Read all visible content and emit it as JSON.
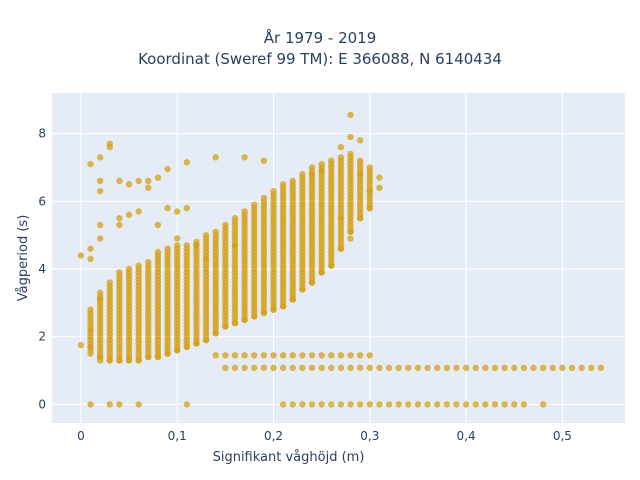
{
  "chart_data": {
    "type": "scatter",
    "title_lines": [
      "År 1979 - 2019",
      "Koordinat (Sweref 99 TM): E 366088, N 6140434"
    ],
    "xlabel": "Signifikant våghöjd (m)",
    "ylabel": "Vågperiod (s)",
    "xlim": [
      -0.03,
      0.565
    ],
    "ylim": [
      -0.55,
      9.2
    ],
    "x_ticks": [
      0,
      0.1,
      0.2,
      0.3,
      0.4,
      0.5
    ],
    "x_tick_labels": [
      "0",
      "0,1",
      "0,2",
      "0,3",
      "0,4",
      "0,5"
    ],
    "y_ticks": [
      0,
      2,
      4,
      6,
      8
    ],
    "y_tick_labels": [
      "0",
      "2",
      "4",
      "6",
      "8"
    ],
    "grid": true,
    "legend": false,
    "marker_color": "#d4a017",
    "background_color": "#e5ecf6",
    "series": [
      {
        "points": [
          [
            0.0,
            4.4
          ],
          [
            0.0,
            1.75
          ],
          [
            0.01,
            7.1
          ],
          [
            0.01,
            4.6
          ],
          [
            0.01,
            4.3
          ],
          [
            0.02,
            7.3
          ],
          [
            0.02,
            6.6
          ],
          [
            0.02,
            6.3
          ],
          [
            0.02,
            5.3
          ],
          [
            0.02,
            4.9
          ],
          [
            0.03,
            7.7
          ],
          [
            0.03,
            7.6
          ],
          [
            0.04,
            6.6
          ],
          [
            0.04,
            5.5
          ],
          [
            0.04,
            5.3
          ],
          [
            0.05,
            6.5
          ],
          [
            0.05,
            5.6
          ],
          [
            0.06,
            6.6
          ],
          [
            0.06,
            5.7
          ],
          [
            0.07,
            6.6
          ],
          [
            0.07,
            6.4
          ],
          [
            0.08,
            6.7
          ],
          [
            0.08,
            5.3
          ],
          [
            0.09,
            6.95
          ],
          [
            0.09,
            5.8
          ],
          [
            0.1,
            5.7
          ],
          [
            0.1,
            4.9
          ],
          [
            0.11,
            7.15
          ],
          [
            0.11,
            5.8
          ],
          [
            0.12,
            4.7
          ],
          [
            0.13,
            4.3
          ],
          [
            0.14,
            7.3
          ],
          [
            0.16,
            4.7
          ],
          [
            0.17,
            7.3
          ],
          [
            0.19,
            7.2
          ],
          [
            0.27,
            7.6
          ],
          [
            0.28,
            7.9
          ],
          [
            0.28,
            8.55
          ],
          [
            0.29,
            7.8
          ],
          [
            0.29,
            6.8
          ],
          [
            0.3,
            7.0
          ],
          [
            0.3,
            6.3
          ],
          [
            0.31,
            6.7
          ],
          [
            0.31,
            6.4
          ],
          [
            0.25,
            6.9
          ],
          [
            0.24,
            6.8
          ],
          [
            0.27,
            5.5
          ],
          [
            0.28,
            4.9
          ],
          [
            0.01,
            0
          ],
          [
            0.03,
            0
          ],
          [
            0.04,
            0
          ],
          [
            0.06,
            0
          ],
          [
            0.11,
            0
          ],
          [
            0.48,
            0
          ],
          [
            0.01,
            1.7
          ],
          [
            0.01,
            2.2
          ],
          [
            0.02,
            1.4
          ],
          [
            0.02,
            3.1
          ],
          [
            0.03,
            1.3
          ],
          [
            0.03,
            3.6
          ],
          [
            0.04,
            1.3
          ],
          [
            0.04,
            3.9
          ],
          [
            0.05,
            1.3
          ],
          [
            0.05,
            4.0
          ],
          [
            0.06,
            1.3
          ],
          [
            0.06,
            4.1
          ],
          [
            0.07,
            1.4
          ],
          [
            0.07,
            4.2
          ],
          [
            0.08,
            1.4
          ],
          [
            0.08,
            4.5
          ],
          [
            0.09,
            1.5
          ],
          [
            0.09,
            4.6
          ],
          [
            0.1,
            1.6
          ],
          [
            0.1,
            4.7
          ],
          [
            0.11,
            1.7
          ],
          [
            0.11,
            4.7
          ],
          [
            0.12,
            1.8
          ],
          [
            0.12,
            4.8
          ],
          [
            0.13,
            1.9
          ],
          [
            0.13,
            5.0
          ],
          [
            0.14,
            2.1
          ],
          [
            0.14,
            5.1
          ],
          [
            0.15,
            2.3
          ],
          [
            0.15,
            5.3
          ],
          [
            0.16,
            2.4
          ],
          [
            0.16,
            5.5
          ],
          [
            0.17,
            2.5
          ],
          [
            0.17,
            5.7
          ],
          [
            0.18,
            2.6
          ],
          [
            0.18,
            5.9
          ],
          [
            0.19,
            2.7
          ],
          [
            0.19,
            6.1
          ],
          [
            0.2,
            2.8
          ],
          [
            0.2,
            6.3
          ],
          [
            0.21,
            2.9
          ],
          [
            0.21,
            6.5
          ],
          [
            0.22,
            3.1
          ],
          [
            0.22,
            6.6
          ],
          [
            0.23,
            3.4
          ],
          [
            0.23,
            6.8
          ],
          [
            0.24,
            3.6
          ],
          [
            0.24,
            7.0
          ],
          [
            0.25,
            3.9
          ],
          [
            0.25,
            7.1
          ],
          [
            0.26,
            4.1
          ],
          [
            0.26,
            7.2
          ],
          [
            0.27,
            4.6
          ],
          [
            0.27,
            7.3
          ],
          [
            0.28,
            5.1
          ],
          [
            0.28,
            7.4
          ],
          [
            0.29,
            5.5
          ],
          [
            0.29,
            7.2
          ],
          [
            0.3,
            5.8
          ],
          [
            0.3,
            6.9
          ]
        ]
      }
    ],
    "columns": [
      {
        "x": 0.01,
        "ymin": 1.5,
        "ymax": 2.8
      },
      {
        "x": 0.02,
        "ymin": 1.3,
        "ymax": 3.3
      },
      {
        "x": 0.03,
        "ymin": 1.3,
        "ymax": 3.5
      },
      {
        "x": 0.04,
        "ymin": 1.3,
        "ymax": 3.8
      },
      {
        "x": 0.05,
        "ymin": 1.3,
        "ymax": 3.9
      },
      {
        "x": 0.06,
        "ymin": 1.3,
        "ymax": 4.0
      },
      {
        "x": 0.07,
        "ymin": 1.4,
        "ymax": 4.1
      },
      {
        "x": 0.08,
        "ymin": 1.4,
        "ymax": 4.4
      },
      {
        "x": 0.09,
        "ymin": 1.5,
        "ymax": 4.5
      },
      {
        "x": 0.1,
        "ymin": 1.6,
        "ymax": 4.6
      },
      {
        "x": 0.11,
        "ymin": 1.7,
        "ymax": 4.6
      },
      {
        "x": 0.12,
        "ymin": 1.8,
        "ymax": 4.7
      },
      {
        "x": 0.13,
        "ymin": 1.9,
        "ymax": 4.9
      },
      {
        "x": 0.14,
        "ymin": 2.1,
        "ymax": 5.0
      },
      {
        "x": 0.15,
        "ymin": 2.3,
        "ymax": 5.2
      },
      {
        "x": 0.16,
        "ymin": 2.4,
        "ymax": 5.4
      },
      {
        "x": 0.17,
        "ymin": 2.5,
        "ymax": 5.6
      },
      {
        "x": 0.18,
        "ymin": 2.6,
        "ymax": 5.8
      },
      {
        "x": 0.19,
        "ymin": 2.7,
        "ymax": 6.0
      },
      {
        "x": 0.2,
        "ymin": 2.8,
        "ymax": 6.2
      },
      {
        "x": 0.21,
        "ymin": 2.9,
        "ymax": 6.4
      },
      {
        "x": 0.22,
        "ymin": 3.1,
        "ymax": 6.5
      },
      {
        "x": 0.23,
        "ymin": 3.4,
        "ymax": 6.7
      },
      {
        "x": 0.24,
        "ymin": 3.6,
        "ymax": 6.9
      },
      {
        "x": 0.25,
        "ymin": 3.9,
        "ymax": 7.0
      },
      {
        "x": 0.26,
        "ymin": 4.1,
        "ymax": 7.1
      },
      {
        "x": 0.27,
        "ymin": 4.6,
        "ymax": 7.2
      },
      {
        "x": 0.28,
        "ymin": 5.1,
        "ymax": 7.3
      },
      {
        "x": 0.29,
        "ymin": 5.5,
        "ymax": 7.1
      },
      {
        "x": 0.3,
        "ymin": 5.8,
        "ymax": 6.8
      }
    ],
    "rows": [
      {
        "y": 1.45,
        "xmin": 0.14,
        "xmax": 0.3
      },
      {
        "y": 1.08,
        "xmin": 0.15,
        "xmax": 0.54
      },
      {
        "y": 0.0,
        "xmin": 0.21,
        "xmax": 0.46
      }
    ],
    "step_x": 0.01,
    "step_y": 0.1
  }
}
